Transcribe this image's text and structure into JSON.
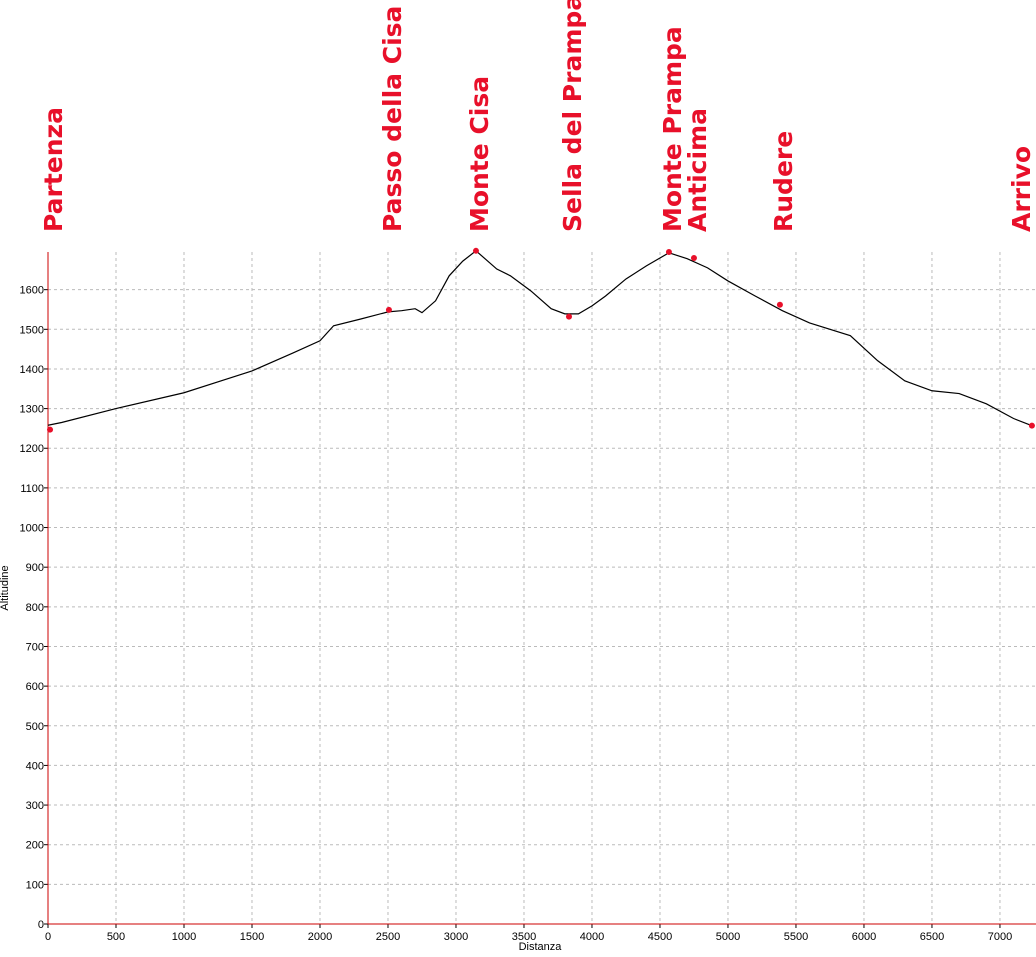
{
  "chart_data": {
    "type": "line",
    "x_label": "Distanza",
    "y_label": "Altitudine",
    "xlim": [
      0,
      7265
    ],
    "ylim": [
      0,
      1695
    ],
    "xticks": [
      0,
      500,
      1000,
      1500,
      2000,
      2500,
      3000,
      3500,
      4000,
      4500,
      5000,
      5500,
      6000,
      6500,
      7000
    ],
    "yticks": [
      0,
      100,
      200,
      300,
      400,
      500,
      600,
      700,
      800,
      900,
      1000,
      1100,
      1200,
      1300,
      1400,
      1500,
      1600
    ],
    "grid": true,
    "profile": {
      "color": "#000000",
      "x": [
        0,
        100,
        500,
        1000,
        1500,
        1800,
        2000,
        2100,
        2300,
        2500,
        2600,
        2700,
        2750,
        2850,
        2950,
        3050,
        3147,
        3300,
        3400,
        3550,
        3700,
        3800,
        3900,
        4000,
        4100,
        4250,
        4400,
        4566,
        4700,
        4850,
        5000,
        5200,
        5400,
        5600,
        5900,
        6100,
        6300,
        6500,
        6700,
        6900,
        7100,
        7235
      ],
      "values": [
        1258,
        1265,
        1300,
        1340,
        1395,
        1440,
        1471,
        1509,
        1526,
        1544,
        1547,
        1552,
        1542,
        1572,
        1635,
        1672,
        1698,
        1652,
        1635,
        1597,
        1552,
        1539,
        1539,
        1559,
        1584,
        1627,
        1660,
        1693,
        1678,
        1655,
        1622,
        1584,
        1547,
        1516,
        1484,
        1421,
        1370,
        1345,
        1338,
        1312,
        1275,
        1257
      ]
    },
    "waypoints": {
      "color": "#e8102a",
      "labels": [
        "Partenza",
        "Passo della Cisa",
        "Monte Cisa",
        "Sella del Prampa",
        "Monte Prampa",
        "Anticima",
        "Rudere",
        "Arrivo"
      ],
      "x": [
        15,
        2507,
        3147,
        3831,
        4566,
        4750,
        5382,
        7235
      ],
      "values": [
        1247,
        1549,
        1698,
        1532,
        1695,
        1680,
        1562,
        1257
      ]
    }
  }
}
